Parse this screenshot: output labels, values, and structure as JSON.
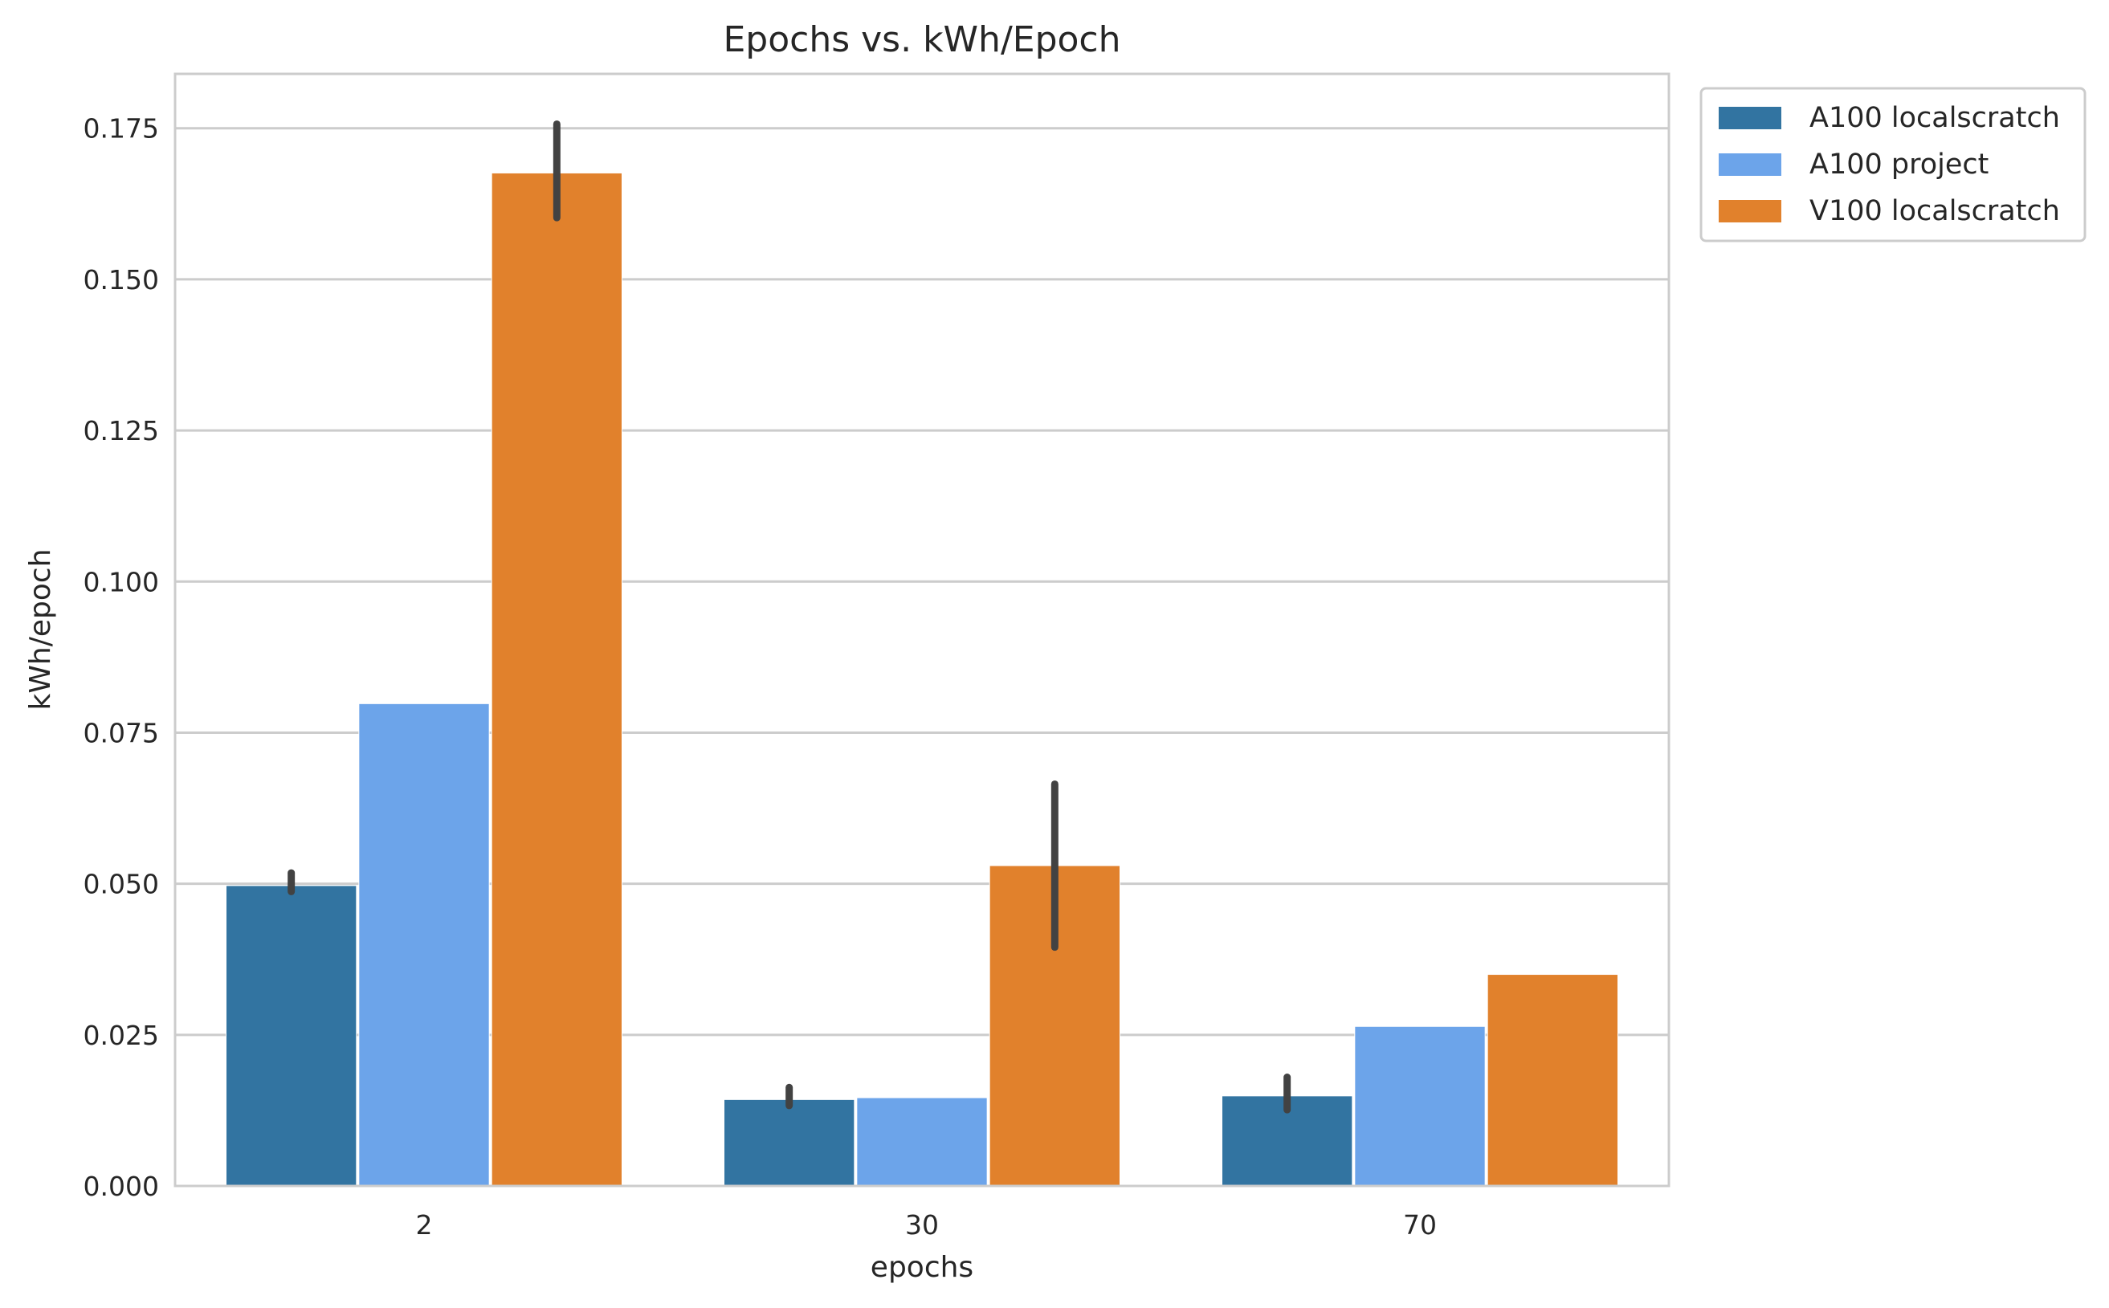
{
  "chart_data": {
    "type": "bar",
    "title": "Epochs vs. kWh/Epoch",
    "xlabel": "epochs",
    "ylabel": "kWh/epoch",
    "categories": [
      "2",
      "30",
      "70"
    ],
    "ylim": [
      0,
      0.184
    ],
    "yticks": [
      "0.000",
      "0.025",
      "0.050",
      "0.075",
      "0.100",
      "0.125",
      "0.150",
      "0.175"
    ],
    "grid": true,
    "legend_position": "outside top-right",
    "series": [
      {
        "name": "A100 localscratch",
        "color": "#3274a1",
        "values": [
          0.0497,
          0.0143,
          0.0149
        ],
        "error_low": [
          0.0487,
          0.0133,
          0.0126
        ],
        "error_high": [
          0.0518,
          0.0163,
          0.018
        ]
      },
      {
        "name": "A100 project",
        "color": "#6ca4ea",
        "values": [
          0.0798,
          0.0146,
          0.0264
        ],
        "error_low": [
          null,
          null,
          null
        ],
        "error_high": [
          null,
          null,
          null
        ]
      },
      {
        "name": "V100 localscratch",
        "color": "#e1812c",
        "values": [
          0.1676,
          0.053,
          0.035
        ],
        "error_low": [
          0.1602,
          0.0395,
          null
        ],
        "error_high": [
          0.1757,
          0.0665,
          null
        ]
      }
    ]
  }
}
